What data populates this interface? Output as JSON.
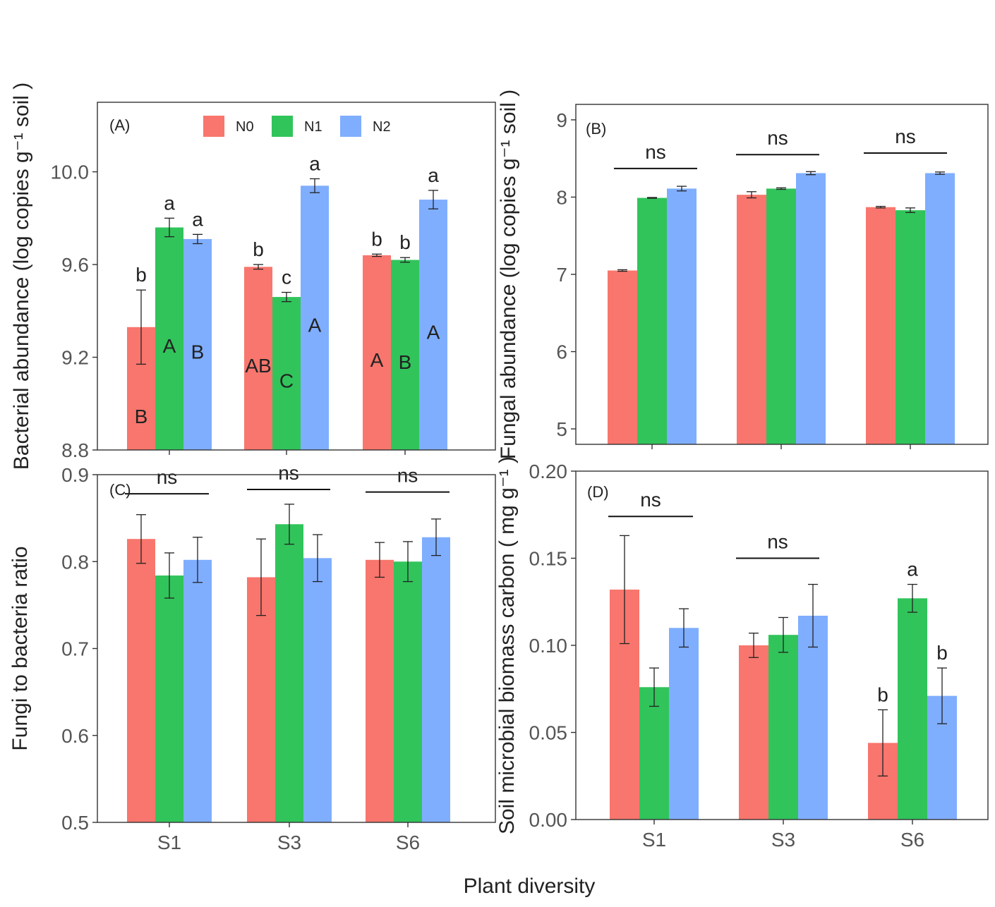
{
  "figure": {
    "xlabel": "Plant diversity",
    "groups": [
      "S1",
      "S3",
      "S6"
    ],
    "legend": [
      {
        "label": "N0",
        "color": "#F8766D"
      },
      {
        "label": "N1",
        "color": "#31C45B"
      },
      {
        "label": "N2",
        "color": "#7FAEFF"
      }
    ]
  },
  "chart_data": [
    {
      "id": "A",
      "type": "bar",
      "panel_label": "(A)",
      "ylabel": "Bacterial abundance (log copies g⁻¹ soil )",
      "ylim": [
        8.8,
        10.3
      ],
      "yticks": [
        8.8,
        9.2,
        9.6,
        10.0
      ],
      "ytick_labels": [
        "8.8",
        "9.2",
        "9.6",
        "10.0"
      ],
      "categories": [
        "S1",
        "S3",
        "S6"
      ],
      "show_xticks": false,
      "series": [
        {
          "name": "N0",
          "values": [
            9.33,
            9.59,
            9.64
          ],
          "err": [
            0.16,
            0.01,
            0.005
          ],
          "top_letters": [
            "b",
            "b",
            "b"
          ],
          "inner_letters": [
            "B",
            "AB",
            "A"
          ]
        },
        {
          "name": "N1",
          "values": [
            9.76,
            9.46,
            9.62
          ],
          "err": [
            0.04,
            0.02,
            0.01
          ],
          "top_letters": [
            "a",
            "c",
            "b"
          ],
          "inner_letters": [
            "A",
            "C",
            "B"
          ]
        },
        {
          "name": "N2",
          "values": [
            9.71,
            9.94,
            9.88
          ],
          "err": [
            0.02,
            0.03,
            0.04
          ],
          "top_letters": [
            "a",
            "a",
            "a"
          ],
          "inner_letters": [
            "B",
            "A",
            "A"
          ]
        }
      ],
      "brackets": [],
      "legend_shown": true
    },
    {
      "id": "B",
      "type": "bar",
      "panel_label": "(B)",
      "ylabel": "Fungal    abundance (log copies g⁻¹ soil )",
      "ylim": [
        4.8,
        9.2
      ],
      "yticks": [
        5,
        6,
        7,
        8,
        9
      ],
      "ytick_labels": [
        "5",
        "6",
        "7",
        "8",
        "9"
      ],
      "categories": [
        "S1",
        "S3",
        "S6"
      ],
      "show_xticks": false,
      "series": [
        {
          "name": "N0",
          "values": [
            7.05,
            8.03,
            7.87
          ],
          "err": [
            0.01,
            0.04,
            0.01
          ]
        },
        {
          "name": "N1",
          "values": [
            7.99,
            8.11,
            7.83
          ],
          "err": [
            0.005,
            0.01,
            0.03
          ]
        },
        {
          "name": "N2",
          "values": [
            8.11,
            8.31,
            8.31
          ],
          "err": [
            0.03,
            0.02,
            0.015
          ]
        }
      ],
      "brackets": [
        {
          "label": "ns",
          "value": 8.37
        },
        {
          "label": "ns",
          "value": 8.55
        },
        {
          "label": "ns",
          "value": 8.57
        }
      ],
      "legend_shown": false
    },
    {
      "id": "C",
      "type": "bar",
      "panel_label": "(C)",
      "ylabel": "Fungi to bacteria ratio",
      "ylim": [
        0.5,
        0.9
      ],
      "yticks": [
        0.5,
        0.6,
        0.7,
        0.8,
        0.9
      ],
      "ytick_labels": [
        "0.5",
        "0.6",
        "0.7",
        "0.8",
        "0.9"
      ],
      "categories": [
        "S1",
        "S3",
        "S6"
      ],
      "show_xticks": true,
      "series": [
        {
          "name": "N0",
          "values": [
            0.826,
            0.782,
            0.802
          ],
          "err": [
            0.028,
            0.044,
            0.02
          ]
        },
        {
          "name": "N1",
          "values": [
            0.784,
            0.843,
            0.8
          ],
          "err": [
            0.026,
            0.023,
            0.023
          ]
        },
        {
          "name": "N2",
          "values": [
            0.802,
            0.804,
            0.828
          ],
          "err": [
            0.026,
            0.027,
            0.021
          ]
        }
      ],
      "brackets": [
        {
          "label": "ns",
          "value": 0.878
        },
        {
          "label": "ns",
          "value": 0.883
        },
        {
          "label": "ns",
          "value": 0.88
        }
      ],
      "legend_shown": false
    },
    {
      "id": "D",
      "type": "bar",
      "panel_label": "(D)",
      "ylabel": "Soil microbial biomass carbon ( mg g⁻¹ )",
      "ylim": [
        0.0,
        0.2
      ],
      "yticks": [
        0.0,
        0.05,
        0.1,
        0.15,
        0.2
      ],
      "ytick_labels": [
        "0.00",
        "0.05",
        "0.10",
        "0.15",
        "0.20"
      ],
      "categories": [
        "S1",
        "S3",
        "S6"
      ],
      "show_xticks": true,
      "series": [
        {
          "name": "N0",
          "values": [
            0.132,
            0.1,
            0.044
          ],
          "err": [
            0.031,
            0.007,
            0.019
          ],
          "top_letters": [
            "",
            "",
            "b"
          ]
        },
        {
          "name": "N1",
          "values": [
            0.076,
            0.106,
            0.127
          ],
          "err": [
            0.011,
            0.01,
            0.008
          ],
          "top_letters": [
            "",
            "",
            "a"
          ]
        },
        {
          "name": "N2",
          "values": [
            0.11,
            0.117,
            0.071
          ],
          "err": [
            0.011,
            0.018,
            0.016
          ],
          "top_letters": [
            "",
            "",
            "b"
          ]
        }
      ],
      "brackets": [
        {
          "label": "ns",
          "value": 0.174
        },
        {
          "label": "ns",
          "value": 0.15
        }
      ],
      "legend_shown": false
    }
  ]
}
